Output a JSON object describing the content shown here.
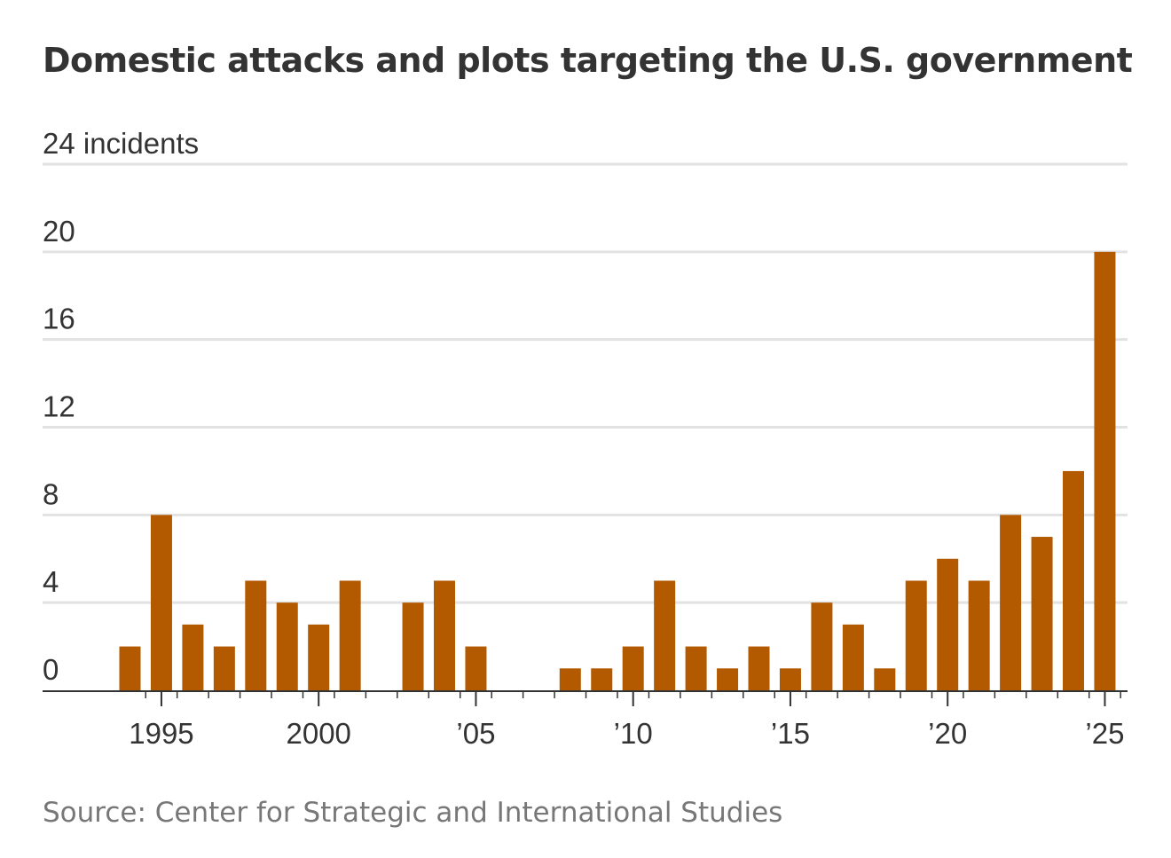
{
  "chart_data": {
    "type": "bar",
    "title": "Domestic attacks and plots targeting the U.S. government",
    "ylabel": "incidents",
    "unit_label": "24 incidents",
    "ylim": [
      0,
      24
    ],
    "yticks": [
      0,
      4,
      8,
      12,
      16,
      20,
      24
    ],
    "ytick_labels": [
      "0",
      "4",
      "8",
      "12",
      "16",
      "20",
      "24 incidents"
    ],
    "x": [
      1994,
      1995,
      1996,
      1997,
      1998,
      1999,
      2000,
      2001,
      2002,
      2003,
      2004,
      2005,
      2006,
      2007,
      2008,
      2009,
      2010,
      2011,
      2012,
      2013,
      2014,
      2015,
      2016,
      2017,
      2018,
      2019,
      2020,
      2021,
      2022,
      2023,
      2024,
      2025
    ],
    "values": [
      2,
      8,
      3,
      2,
      5,
      4,
      3,
      5,
      0,
      4,
      5,
      2,
      0,
      0,
      1,
      1,
      2,
      5,
      2,
      1,
      2,
      1,
      4,
      3,
      1,
      5,
      6,
      5,
      8,
      7,
      10,
      20
    ],
    "xtick_years": [
      1995,
      2000,
      2005,
      2010,
      2015,
      2020,
      2025
    ],
    "xtick_labels": [
      "1995",
      "2000",
      "’05",
      "’10",
      "’15",
      "’20",
      "’25"
    ],
    "bar_color": "#b35a00",
    "gridlines": true,
    "source": "Source: Center for Strategic and International Studies"
  }
}
